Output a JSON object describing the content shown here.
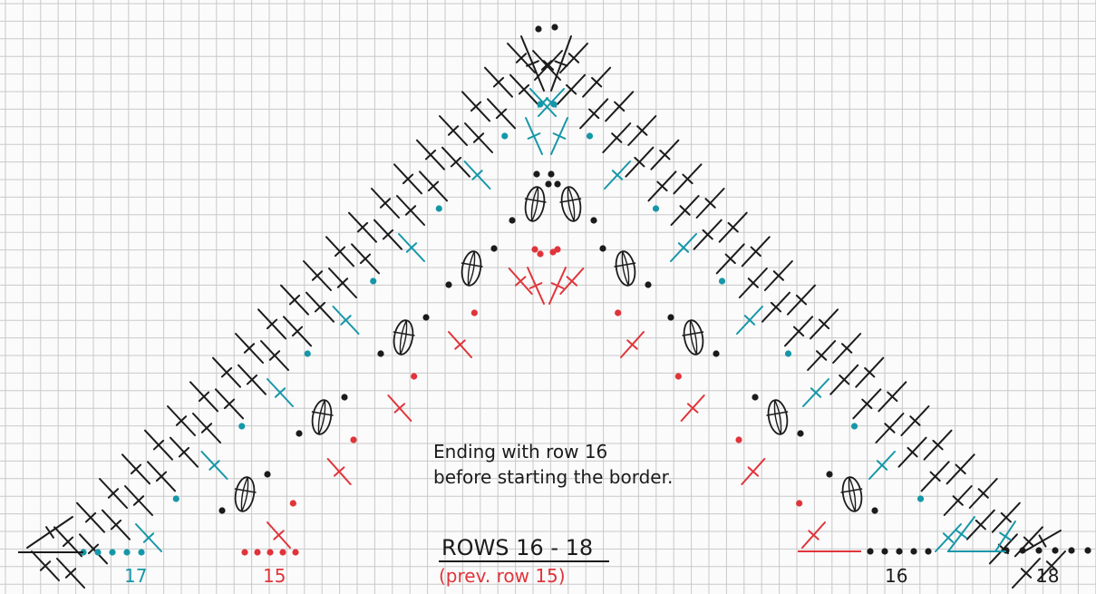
{
  "colors": {
    "paper": "#fbfbfb",
    "grid": "#c9c9c9",
    "black": "#1b1b1b",
    "teal": "#1597a8",
    "red": "#e0343a"
  },
  "note": {
    "line1": "Ending with row 16",
    "line2": "before starting the border."
  },
  "heading": {
    "title": "ROWS 16 - 18",
    "subtitle": "(prev. row 15)"
  },
  "row_labels": {
    "r17": "17",
    "r15": "15",
    "r16": "16",
    "r18": "18"
  },
  "icons": [
    "double-crochet-stitch",
    "chain-stitch",
    "puff-stitch"
  ]
}
